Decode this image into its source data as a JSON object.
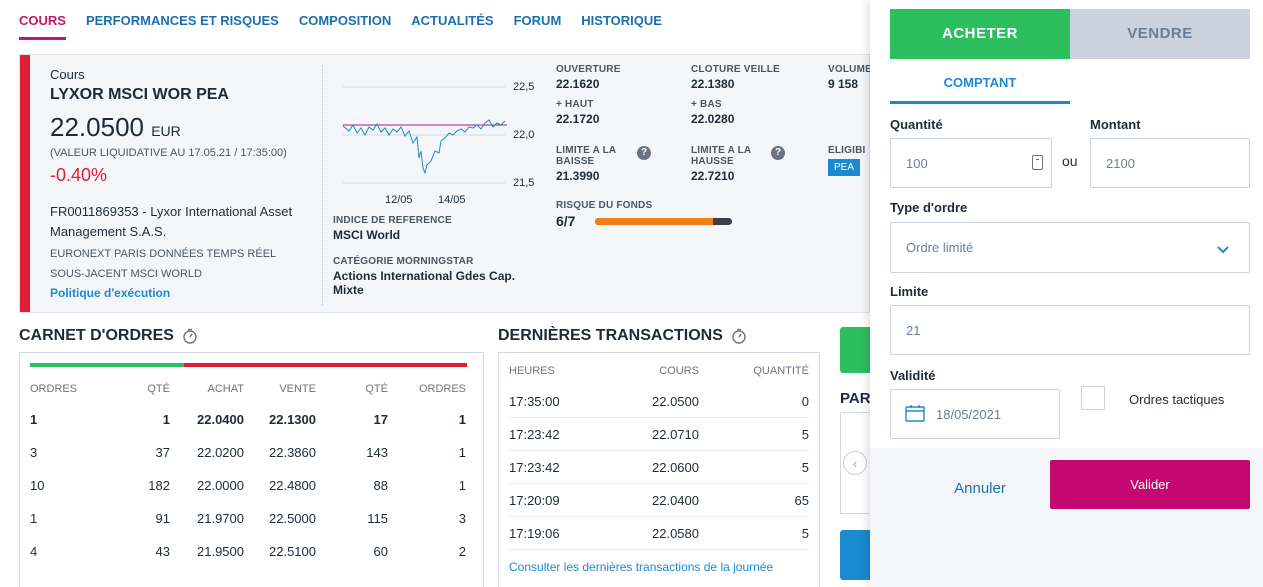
{
  "nav": {
    "tabs": [
      "COURS",
      "PERFORMANCES ET RISQUES",
      "COMPOSITION",
      "ACTUALITÉS",
      "FORUM",
      "HISTORIQUE"
    ],
    "active": "COURS"
  },
  "quote": {
    "label": "Cours",
    "name": "LYXOR MSCI WOR PEA",
    "price": "22.0500",
    "currency": "EUR",
    "liquidative": "(VALEUR LIQUIDATIVE AU 17.05.21 / 17:35:00)",
    "change": "-0.40%",
    "isin_line": "FR0011869353 - Lyxor International Asset Management S.A.S.",
    "market": "EURONEXT PARIS DONNÉES TEMPS RÉEL",
    "underlying": "SOUS-JACENT MSCI WORLD",
    "exec_link": "Politique d'exécution",
    "chart": {
      "y_ticks": [
        "22,5",
        "22,0",
        "21,5"
      ],
      "x_ticks": [
        "12/05",
        "14/05"
      ],
      "reference_line": 22.1
    },
    "index_ref_label": "INDICE DE REFERENCE",
    "index_ref_value": "MSCI World",
    "morningstar_label": "CATÉGORIE MORNINGSTAR",
    "morningstar_value": "Actions International Gdes Cap. Mixte",
    "stats": {
      "ouverture_label": "OUVERTURE",
      "ouverture": "22.1620",
      "cloture_label": "CLOTURE VEILLE",
      "cloture": "22.1380",
      "volume_label": "VOLUME",
      "volume": "9 158",
      "haut_label": "+ HAUT",
      "haut": "22.1720",
      "bas_label": "+ BAS",
      "bas": "22.0280",
      "lim_baisse_label_1": "LIMITE A LA",
      "lim_baisse_label_2": "BAISSE",
      "lim_baisse": "21.3990",
      "lim_hausse_label_1": "LIMITE A LA",
      "lim_hausse_label_2": "HAUSSE",
      "lim_hausse": "22.7210",
      "eligib_label": "ELIGIBI",
      "eligib_badge": "PEA",
      "risk_label": "RISQUE DU FONDS",
      "risk": "6/7",
      "risk_fraction": 0.86
    },
    "help_glyph": "?"
  },
  "carnet": {
    "title": "CARNET D'ORDRES",
    "headers": [
      "ORDRES",
      "QTÉ",
      "ACHAT",
      "VENTE",
      "QTÉ",
      "ORDRES"
    ],
    "rows": [
      [
        "1",
        "1",
        "22.0400",
        "22.1300",
        "17",
        "1"
      ],
      [
        "3",
        "37",
        "22.0200",
        "22.3860",
        "143",
        "1"
      ],
      [
        "10",
        "182",
        "22.0000",
        "22.4800",
        "88",
        "1"
      ],
      [
        "1",
        "91",
        "21.9700",
        "22.5000",
        "115",
        "3"
      ],
      [
        "4",
        "43",
        "21.9500",
        "22.5100",
        "60",
        "2"
      ]
    ]
  },
  "transactions": {
    "title": "DERNIÈRES TRANSACTIONS",
    "headers": [
      "HEURES",
      "COURS",
      "QUANTITÉ"
    ],
    "rows": [
      [
        "17:35:00",
        "22.0500",
        "0"
      ],
      [
        "17:23:42",
        "22.0710",
        "5"
      ],
      [
        "17:23:42",
        "22.0600",
        "5"
      ],
      [
        "17:20:09",
        "22.0400",
        "65"
      ],
      [
        "17:19:06",
        "22.0580",
        "5"
      ]
    ],
    "link": "Consulter les dernières transactions de la journée"
  },
  "behind": {
    "par_text": "PAR",
    "left_arrow": "‹"
  },
  "order_panel": {
    "buy": "ACHETER",
    "sell": "VENDRE",
    "subtab": "COMPTANT",
    "quantite_label": "Quantité",
    "quantite_placeholder": "100",
    "montant_label": "Montant",
    "montant_placeholder": "2100",
    "ou": "ou",
    "type_label": "Type d'ordre",
    "type_value": "Ordre limité",
    "limite_label": "Limite",
    "limite_value": "21",
    "validite_label": "Validité",
    "validite_value": "18/05/2021",
    "tactiques_label": "Ordres tactiques",
    "cancel": "Annuler",
    "submit": "Valider",
    "chevron": "⌄"
  }
}
